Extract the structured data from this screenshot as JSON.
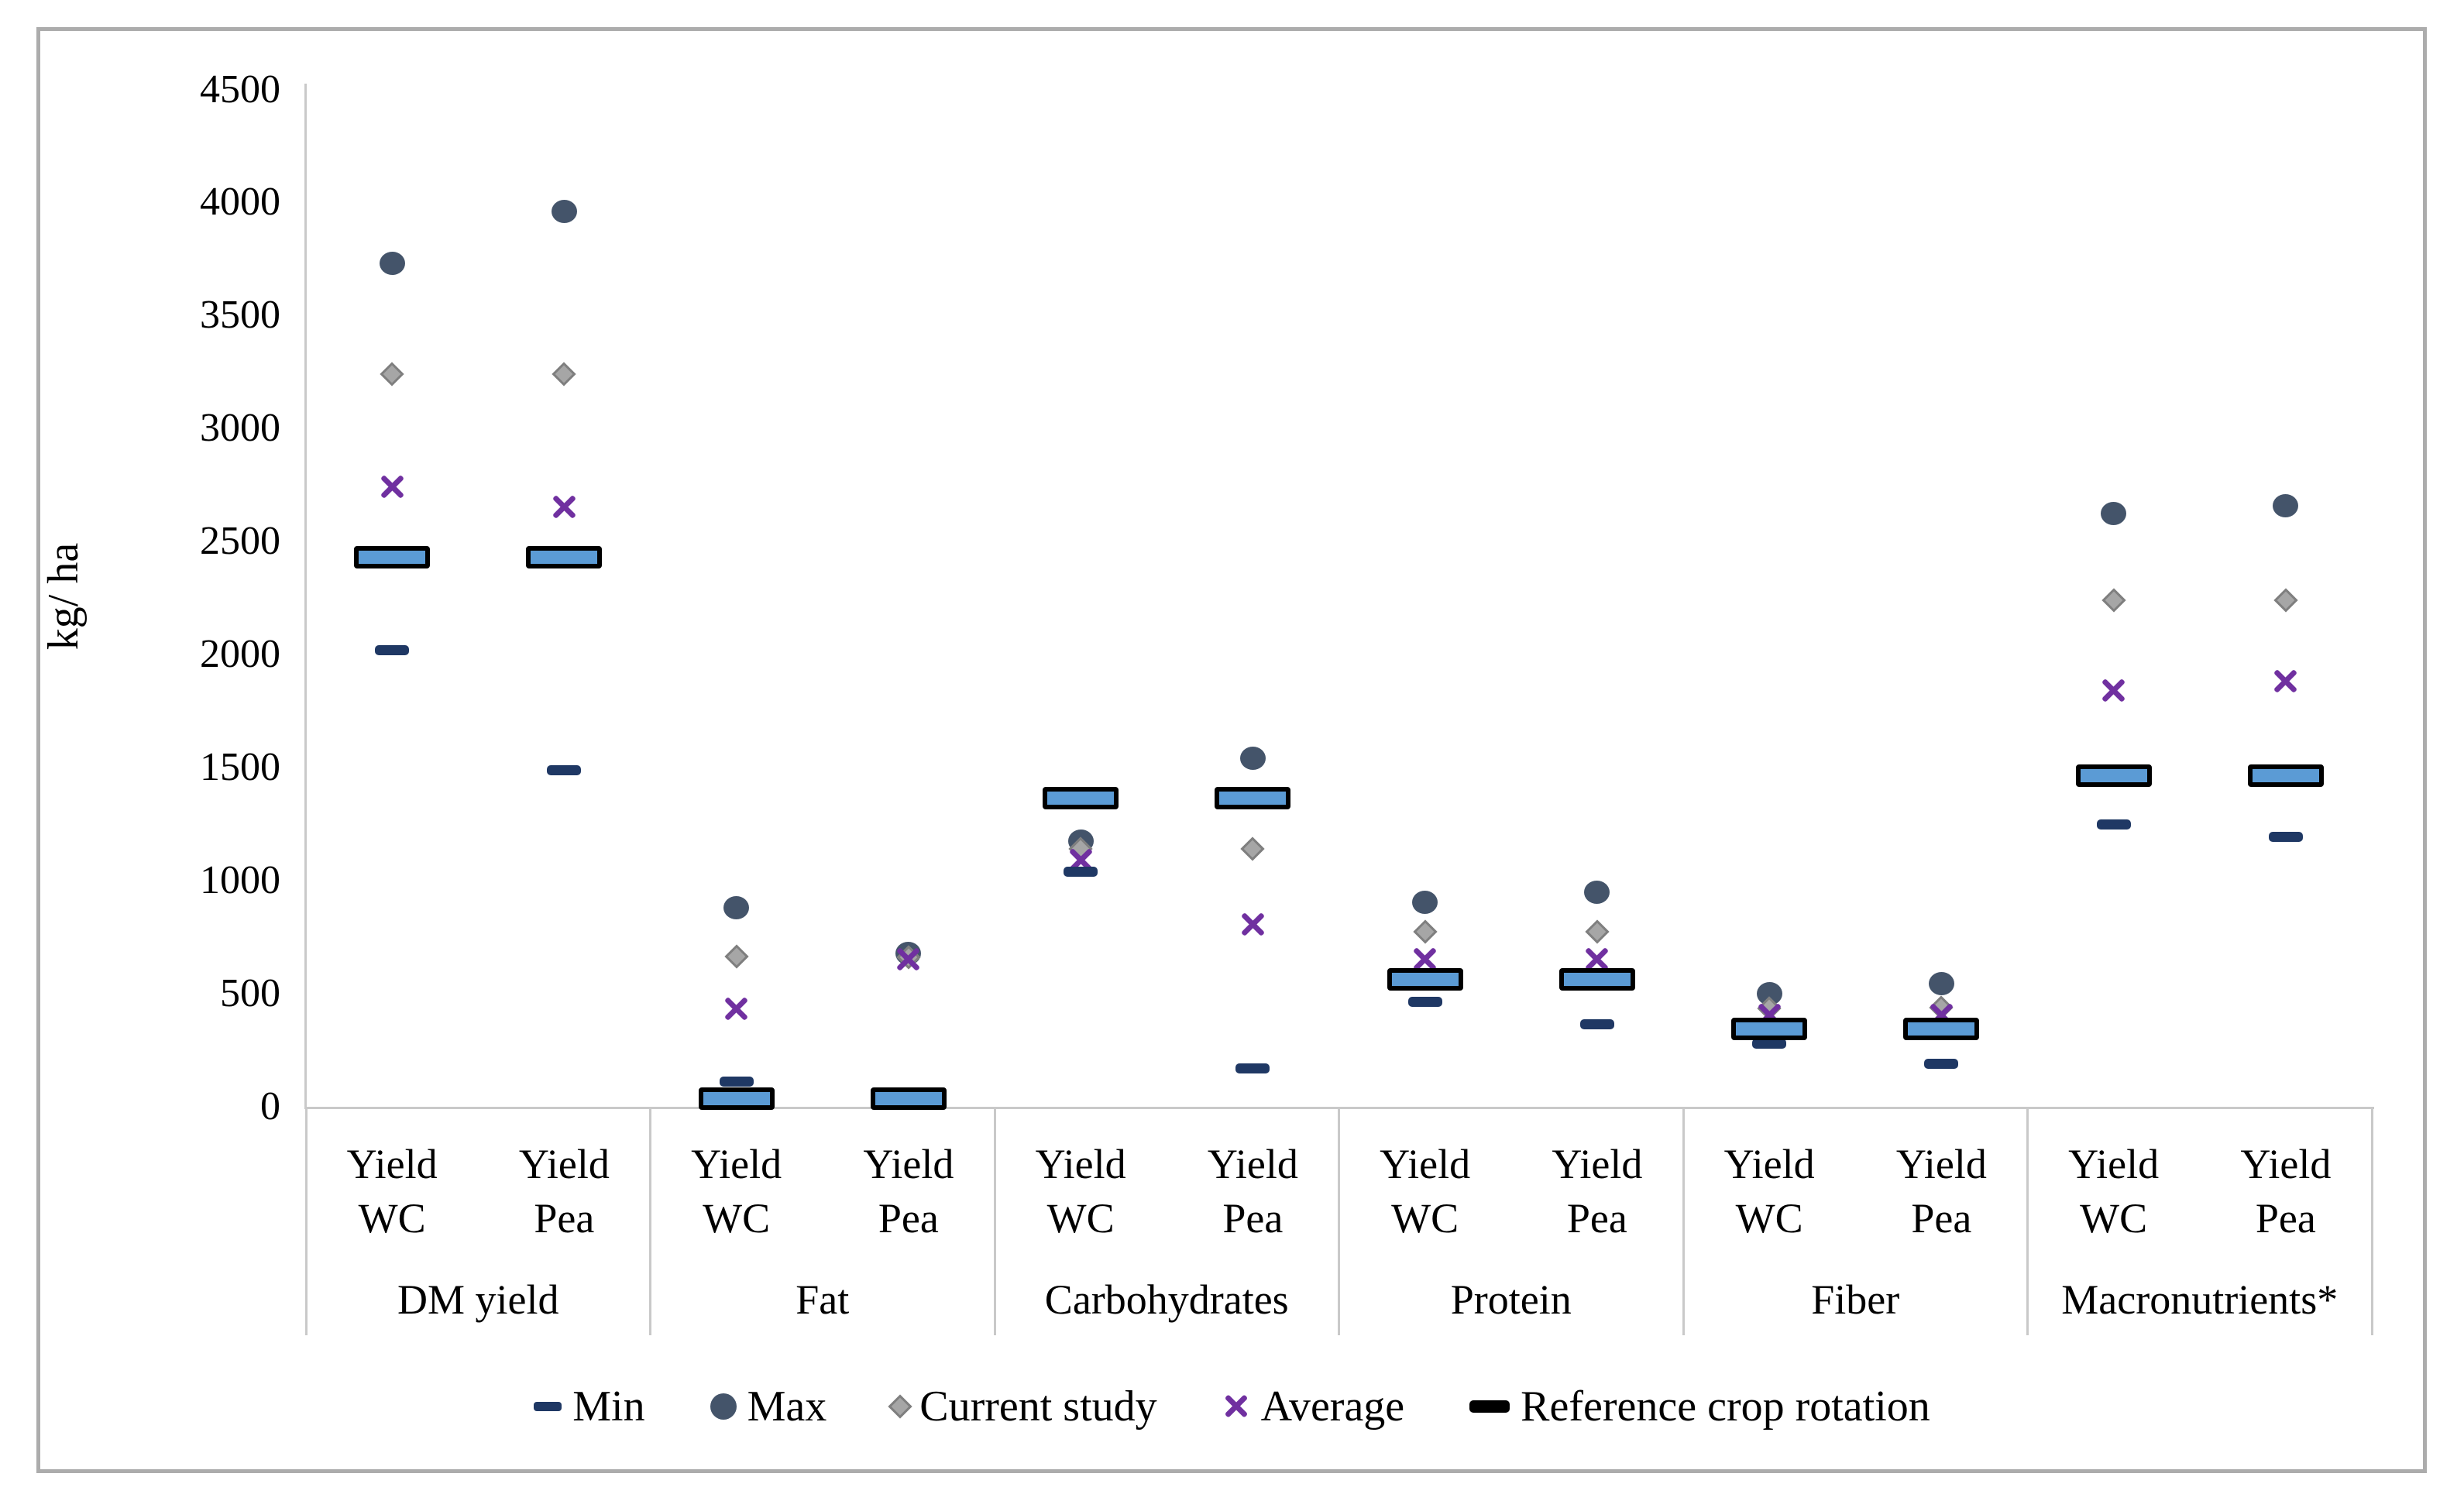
{
  "chart_data": {
    "type": "scatter",
    "title": "",
    "xlabel": "",
    "ylabel": "kg/ ha",
    "ylim": [
      0,
      4500
    ],
    "ytick_step": 500,
    "yticks": [
      4500,
      4000,
      3500,
      3000,
      2500,
      2000,
      1500,
      1000,
      500,
      0
    ],
    "grid": false,
    "legend_position": "bottom",
    "legend": [
      {
        "key": "min",
        "label": "Min",
        "marker": "dash",
        "color": "#1F3864"
      },
      {
        "key": "max",
        "label": "Max",
        "marker": "circle",
        "color": "#44546A"
      },
      {
        "key": "current_study",
        "label": "Current study",
        "marker": "diamond",
        "color": "#A6A6A6"
      },
      {
        "key": "average",
        "label": "Average",
        "marker": "x",
        "color": "#7030A0"
      },
      {
        "key": "reference_crop_rotation",
        "label": "Reference crop rotation",
        "marker": "thick-dash",
        "color": "#000000"
      }
    ],
    "sub_label_lines": [
      "Yield\nWC",
      "Yield\nPea"
    ],
    "groups": [
      {
        "label": "DM yield",
        "columns": [
          {
            "label": "Yield WC",
            "min": 2020,
            "max": 3730,
            "current_study": 3240,
            "average": 2740,
            "reference_crop_rotation": 2430
          },
          {
            "label": "Yield Pea",
            "min": 1490,
            "max": 3960,
            "current_study": 3240,
            "average": 2650,
            "reference_crop_rotation": 2430
          }
        ]
      },
      {
        "label": "Fat",
        "columns": [
          {
            "label": "Yield WC",
            "min": 110,
            "max": 880,
            "current_study": 665,
            "average": 430,
            "reference_crop_rotation": 35
          },
          {
            "label": "Yield Pea",
            "min": 35,
            "max": 680,
            "current_study": 660,
            "average": 650,
            "reference_crop_rotation": 35
          }
        ]
      },
      {
        "label": "Carbohydrates",
        "columns": [
          {
            "label": "Yield WC",
            "min": 1040,
            "max": 1175,
            "current_study": 1140,
            "average": 1090,
            "reference_crop_rotation": 1365
          },
          {
            "label": "Yield Pea",
            "min": 170,
            "max": 1540,
            "current_study": 1140,
            "average": 805,
            "reference_crop_rotation": 1365
          }
        ]
      },
      {
        "label": "Protein",
        "columns": [
          {
            "label": "Yield WC",
            "min": 465,
            "max": 905,
            "current_study": 775,
            "average": 650,
            "reference_crop_rotation": 565
          },
          {
            "label": "Yield Pea",
            "min": 365,
            "max": 950,
            "current_study": 775,
            "average": 650,
            "reference_crop_rotation": 565
          }
        ]
      },
      {
        "label": "Fiber",
        "columns": [
          {
            "label": "Yield WC",
            "min": 280,
            "max": 500,
            "current_study": 435,
            "average": 405,
            "reference_crop_rotation": 345
          },
          {
            "label": "Yield Pea",
            "min": 190,
            "max": 545,
            "current_study": 440,
            "average": 405,
            "reference_crop_rotation": 345
          }
        ]
      },
      {
        "label": "Macronutrients*",
        "columns": [
          {
            "label": "Yield WC",
            "min": 1250,
            "max": 2625,
            "current_study": 2240,
            "average": 1840,
            "reference_crop_rotation": 1465
          },
          {
            "label": "Yield Pea",
            "min": 1195,
            "max": 2660,
            "current_study": 2240,
            "average": 1880,
            "reference_crop_rotation": 1465
          }
        ]
      }
    ],
    "colors": {
      "max": "#44546A",
      "min": "#1F3864",
      "current_study_fill": "#A6A6A6",
      "current_study_border": "#7F7F7F",
      "average": "#7030A0",
      "reference_fill": "#5B9BD5",
      "reference_border": "#000000",
      "axis_line": "#C9C9C9",
      "figure_border": "#ACACAC",
      "text": "#000000"
    }
  }
}
